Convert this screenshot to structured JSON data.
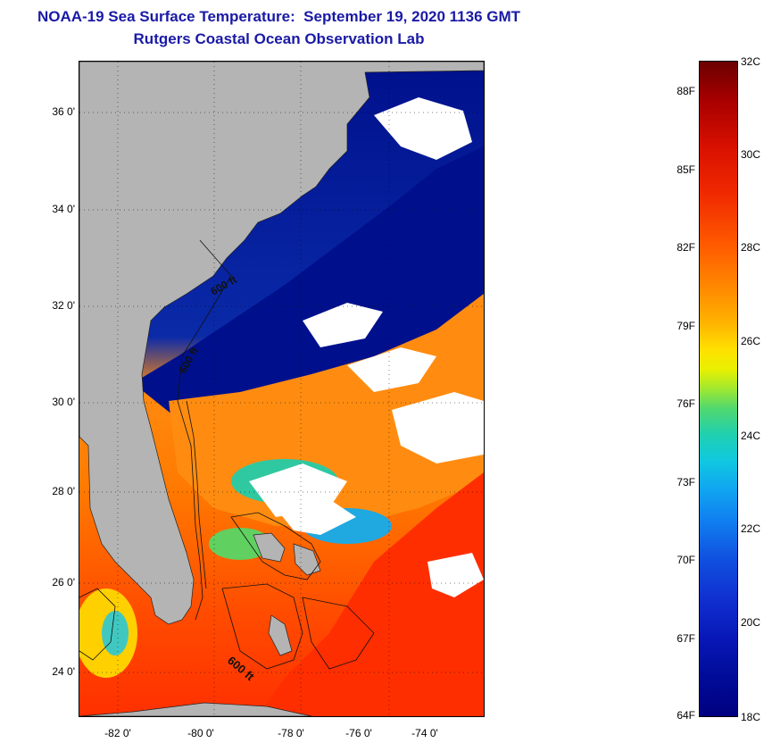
{
  "title": {
    "line1": "NOAA-19 Sea Surface Temperature:  September 19, 2020 1136 GMT",
    "line2": "Rutgers Coastal Ocean Observation Lab"
  },
  "map": {
    "lat_ticks": [
      "36 0'",
      "34 0'",
      "32 0'",
      "30 0'",
      "28 0'",
      "26 0'",
      "24 0'"
    ],
    "lon_ticks": [
      "-82 0'",
      "-80 0'",
      "-78 0'",
      "-76 0'",
      "-74 0'"
    ],
    "contour_labels": [
      "600 ft",
      "600 ft",
      "600 ft"
    ],
    "colors": {
      "land": "#b4b4b4",
      "cloud": "#ffffff",
      "cold": "#00108c",
      "warm": "#ff8800",
      "hot": "#ff2a00"
    }
  },
  "colorbar": {
    "fahrenheit": [
      "88F",
      "85F",
      "82F",
      "79F",
      "76F",
      "73F",
      "70F",
      "67F",
      "64F"
    ],
    "celsius": [
      "32C",
      "30C",
      "28C",
      "26C",
      "24C",
      "22C",
      "20C",
      "18C"
    ]
  }
}
